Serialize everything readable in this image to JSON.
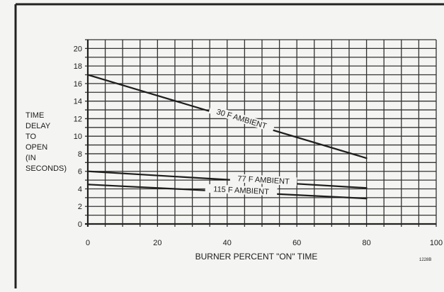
{
  "chart_data": {
    "type": "line",
    "xlabel": "BURNER PERCENT \"ON\" TIME",
    "ylabel_lines": [
      "TIME",
      "DELAY",
      "TO",
      "OPEN",
      "(IN",
      "SECONDS)"
    ],
    "xlim": [
      0,
      100
    ],
    "ylim": [
      0,
      21
    ],
    "x_ticks": [
      0,
      20,
      40,
      60,
      80,
      100
    ],
    "y_ticks": [
      0,
      2,
      4,
      6,
      8,
      10,
      12,
      14,
      16,
      18,
      20
    ],
    "x_minor_step": 5,
    "y_minor_step": 1,
    "grid": true,
    "corner_code": "1228B",
    "series": [
      {
        "name": "30 F AMBIENT",
        "x": [
          0,
          80
        ],
        "y": [
          17.0,
          7.5
        ]
      },
      {
        "name": "77 F AMBIENT",
        "x": [
          0,
          80
        ],
        "y": [
          6.0,
          4.1
        ]
      },
      {
        "name": "115 F AMBIENT",
        "x": [
          0,
          80
        ],
        "y": [
          4.5,
          2.9
        ]
      }
    ]
  }
}
